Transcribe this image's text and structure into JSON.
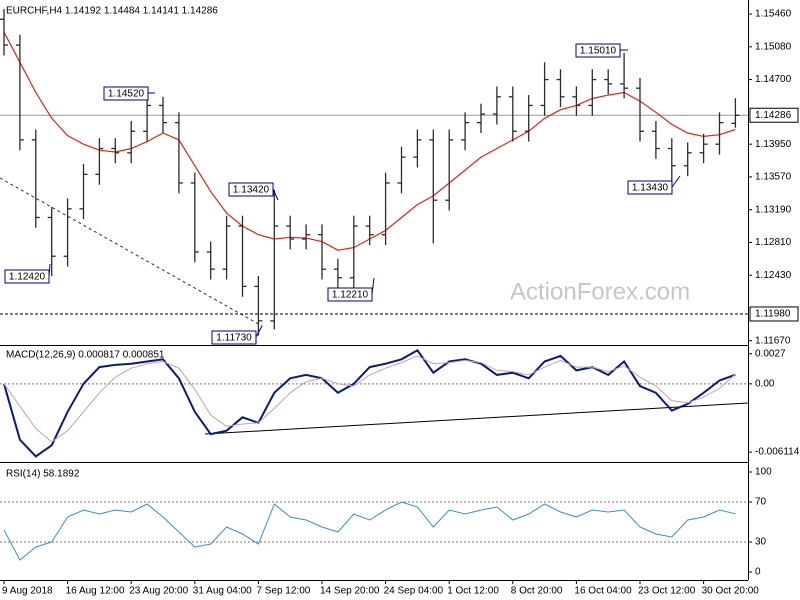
{
  "chart_data": [
    {
      "type": "ohlc",
      "title": "EURCHF,H4 1.14192 1.14484 1.14141 1.14286",
      "color": "#2b2b2b",
      "open": [
        1.154,
        1.151,
        1.14,
        1.131,
        1.1265,
        1.132,
        1.136,
        1.139,
        1.1385,
        1.141,
        1.144,
        1.142,
        1.135,
        1.127,
        1.125,
        1.13,
        1.123,
        1.119,
        1.13,
        1.1285,
        1.129,
        1.125,
        1.124,
        1.13,
        1.129,
        1.135,
        1.138,
        1.14,
        1.133,
        1.14,
        1.142,
        1.143,
        1.145,
        1.141,
        1.144,
        1.147,
        1.145,
        1.144,
        1.147,
        1.1465,
        1.146,
        1.141,
        1.139,
        1.137,
        1.1385,
        1.1395,
        1.14192
      ],
      "high": [
        1.1552,
        1.1522,
        1.1412,
        1.1322,
        1.1332,
        1.1372,
        1.1402,
        1.1402,
        1.1422,
        1.1452,
        1.145,
        1.1432,
        1.1362,
        1.1282,
        1.1312,
        1.1312,
        1.1242,
        1.1342,
        1.1312,
        1.1302,
        1.1302,
        1.1262,
        1.1312,
        1.1312,
        1.1362,
        1.1392,
        1.1412,
        1.1412,
        1.1412,
        1.1432,
        1.1442,
        1.1462,
        1.1462,
        1.1452,
        1.149,
        1.1482,
        1.1462,
        1.1482,
        1.1482,
        1.1501,
        1.1472,
        1.1422,
        1.1402,
        1.1397,
        1.1407,
        1.1432,
        1.14484
      ],
      "low": [
        1.1498,
        1.1388,
        1.1298,
        1.1242,
        1.1253,
        1.1308,
        1.1348,
        1.1373,
        1.1373,
        1.1398,
        1.1408,
        1.1338,
        1.1258,
        1.1238,
        1.1238,
        1.1218,
        1.1173,
        1.118,
        1.1273,
        1.1273,
        1.1238,
        1.1221,
        1.1228,
        1.1278,
        1.1278,
        1.1338,
        1.1368,
        1.128,
        1.1318,
        1.1388,
        1.1408,
        1.1418,
        1.1398,
        1.1398,
        1.1428,
        1.1438,
        1.1428,
        1.1428,
        1.1453,
        1.1448,
        1.1398,
        1.1378,
        1.1343,
        1.1358,
        1.1373,
        1.1383,
        1.14141
      ],
      "close": [
        1.151,
        1.14,
        1.131,
        1.1265,
        1.132,
        1.136,
        1.139,
        1.1385,
        1.141,
        1.144,
        1.142,
        1.135,
        1.127,
        1.125,
        1.13,
        1.123,
        1.119,
        1.13,
        1.1285,
        1.129,
        1.125,
        1.124,
        1.13,
        1.129,
        1.135,
        1.138,
        1.14,
        1.133,
        1.14,
        1.142,
        1.143,
        1.145,
        1.141,
        1.144,
        1.147,
        1.145,
        1.144,
        1.147,
        1.1465,
        1.146,
        1.141,
        1.139,
        1.137,
        1.1385,
        1.1395,
        1.142,
        1.14286
      ],
      "overlay": {
        "color": "#e0251b",
        "values": [
          1.1525,
          1.149,
          1.1455,
          1.1425,
          1.1405,
          1.1395,
          1.1388,
          1.1386,
          1.139,
          1.1398,
          1.1408,
          1.14,
          1.137,
          1.134,
          1.1315,
          1.13,
          1.129,
          1.1285,
          1.1287,
          1.1286,
          1.1282,
          1.1272,
          1.1275,
          1.1285,
          1.1295,
          1.131,
          1.1325,
          1.1335,
          1.135,
          1.1365,
          1.138,
          1.139,
          1.14,
          1.141,
          1.1425,
          1.1435,
          1.144,
          1.1448,
          1.1452,
          1.1455,
          1.1445,
          1.1432,
          1.1418,
          1.1408,
          1.1404,
          1.1406,
          1.1412
        ]
      },
      "ylim": [
        1.1162,
        1.156
      ],
      "yticks": [
        {
          "value": 1.1546,
          "label": "1.15460"
        },
        {
          "value": 1.1508,
          "label": "1.15080"
        },
        {
          "value": 1.147,
          "label": "1.14700"
        },
        {
          "value": 1.1395,
          "label": "1.13950"
        },
        {
          "value": 1.1357,
          "label": "1.13570"
        },
        {
          "value": 1.1319,
          "label": "1.13190"
        },
        {
          "value": 1.1281,
          "label": "1.12810"
        },
        {
          "value": 1.1243,
          "label": "1.12430"
        },
        {
          "value": 1.1167,
          "label": "1.11670"
        }
      ],
      "hlines": [
        {
          "value": 1.14286,
          "label": "1.14286",
          "style": "solid"
        },
        {
          "value": 1.1198,
          "label": "1.11980",
          "style": "dashed"
        }
      ],
      "annotations": [
        "1.12420",
        "1.14520",
        "1.13420",
        "1.12210",
        "1.11730",
        "1.15010",
        "1.13430"
      ],
      "watermark": "ActionForex.com"
    },
    {
      "type": "line",
      "title": "MACD(12,26,9) 0.000817 0.000851",
      "series": [
        {
          "color": "#0a1a80",
          "values": [
            0.0,
            -0.005,
            -0.0065,
            -0.0055,
            -0.0025,
            0.0,
            0.0015,
            0.0017,
            0.0018,
            0.002,
            0.0022,
            0.0005,
            -0.0025,
            -0.0045,
            -0.0042,
            -0.003,
            -0.0035,
            -0.0008,
            0.0005,
            0.0008,
            0.0005,
            -0.0008,
            0.0,
            0.0015,
            0.0018,
            0.0022,
            0.003,
            0.001,
            0.002,
            0.0022,
            0.0018,
            0.0008,
            0.001,
            0.0005,
            0.002,
            0.0025,
            0.0012,
            0.0015,
            0.0008,
            0.002,
            -0.0002,
            -0.0008,
            -0.0024,
            -0.0018,
            -0.0008,
            0.0003,
            0.000817
          ]
        },
        {
          "color": "#c9a3a3",
          "values": [
            0.0,
            -0.002,
            -0.004,
            -0.0052,
            -0.0042,
            -0.0025,
            -0.0008,
            0.0006,
            0.0014,
            0.0018,
            0.002,
            0.0014,
            -0.0005,
            -0.0028,
            -0.0038,
            -0.0036,
            -0.0035,
            -0.0022,
            -0.0008,
            0.0002,
            0.0005,
            0.0,
            -0.0002,
            0.0008,
            0.0014,
            0.0019,
            0.0025,
            0.0018,
            0.0019,
            0.0021,
            0.0019,
            0.0012,
            0.0011,
            0.0008,
            0.0015,
            0.0021,
            0.0015,
            0.0015,
            0.0011,
            0.0016,
            0.0006,
            -0.0002,
            -0.0015,
            -0.0017,
            -0.0012,
            -0.0004,
            0.000851
          ]
        }
      ],
      "ylim": [
        -0.007,
        0.0033
      ],
      "yticks": [
        0.0027,
        {
          "value": 0,
          "label": "0.00"
        },
        -0.006114
      ],
      "levels": [
        0
      ]
    },
    {
      "type": "line",
      "title": "RSI(14) 58.1892",
      "categories": [
        "9 Aug 2018",
        null,
        null,
        null,
        "16 Aug 12:00",
        null,
        null,
        null,
        "23 Aug 20:00",
        null,
        null,
        null,
        "31 Aug 04:00",
        null,
        null,
        null,
        "7 Sep 12:00",
        null,
        null,
        null,
        "14 Sep 20:00",
        null,
        null,
        null,
        "24 Sep 04:00",
        null,
        null,
        null,
        "1 Oct 12:00",
        null,
        null,
        null,
        "8 Oct 20:00",
        null,
        null,
        null,
        "16 Oct 04:00",
        null,
        null,
        null,
        "23 Oct 12:00",
        null,
        null,
        null,
        "30 Oct 20:00",
        null,
        null
      ],
      "series": [
        {
          "color": "#3d8bd6",
          "values": [
            42,
            12,
            25,
            30,
            55,
            62,
            58,
            62,
            60,
            68,
            55,
            40,
            25,
            28,
            45,
            38,
            28,
            68,
            55,
            52,
            45,
            40,
            58,
            52,
            62,
            70,
            65,
            45,
            62,
            58,
            62,
            65,
            52,
            58,
            68,
            60,
            55,
            62,
            60,
            62,
            45,
            38,
            35,
            52,
            55,
            62,
            58.1892
          ]
        }
      ],
      "ylim": [
        -8,
        108
      ],
      "yticks": [
        100,
        70,
        30,
        0
      ],
      "levels": [
        70,
        30
      ]
    }
  ]
}
